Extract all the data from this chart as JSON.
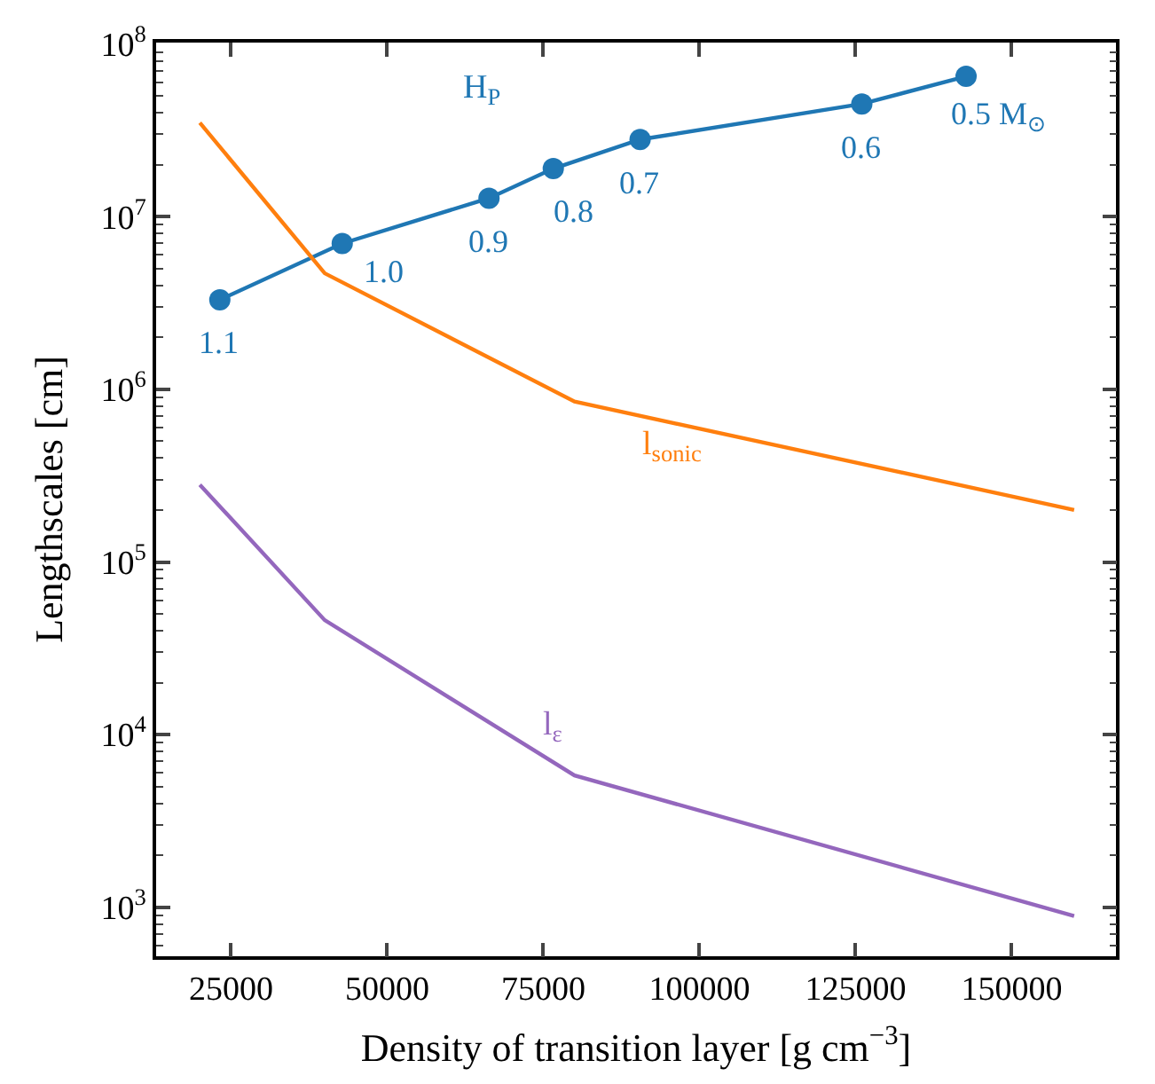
{
  "chart_data": {
    "type": "line",
    "xlabel": "Density of transition layer [g cm$^{−3}$]",
    "ylabel": "Lengthscales [cm]",
    "log": "y",
    "legend": false,
    "xlim": [
      13000,
      166700
    ],
    "xticks": [
      25000,
      50000,
      75000,
      100000,
      125000,
      150000
    ],
    "ylim": [
      520,
      102000000
    ],
    "yticks": [
      {
        "value": 1000,
        "label": "10$^{3}$"
      },
      {
        "value": 10000,
        "label": "10$^{4}$"
      },
      {
        "value": 100000,
        "label": "10$^{5}$"
      },
      {
        "value": 1000000,
        "label": "10$^{6}$"
      },
      {
        "value": 10000000,
        "label": "10$^{7}$"
      },
      {
        "value": 100000000,
        "label": "10$^{8}$"
      }
    ],
    "series": [
      {
        "name": "H$_{P}$",
        "color": "#1f77b4",
        "marker": "circle",
        "x": [
          23200,
          42800,
          66300,
          76600,
          90500,
          126000,
          142700
        ],
        "values": [
          3300000,
          7000000,
          12800000,
          19000000,
          28000000,
          45000000,
          65000000
        ]
      },
      {
        "name": "l$_{sonic}$",
        "color": "#ff7f0e",
        "marker": "none",
        "x": [
          20000,
          40000,
          80000,
          160000
        ],
        "values": [
          35000000,
          4700000,
          850000,
          200000
        ]
      },
      {
        "name": "l$_{ε}$",
        "color": "#9467bd",
        "marker": "none",
        "x": [
          20000,
          40000,
          80000,
          160000
        ],
        "values": [
          280000,
          46000,
          5800,
          890
        ]
      }
    ],
    "annotations": [
      {
        "text": "1.1",
        "x": 23200,
        "y": 3300000
      },
      {
        "text": "1.0",
        "x": 42800,
        "y": 7000000
      },
      {
        "text": "0.9",
        "x": 66300,
        "y": 12800000
      },
      {
        "text": "0.8",
        "x": 76600,
        "y": 19000000
      },
      {
        "text": "0.7",
        "x": 90500,
        "y": 28000000
      },
      {
        "text": "0.6",
        "x": 126000,
        "y": 45000000
      },
      {
        "text": "0.5 M$_{⊙}$",
        "x": 142700,
        "y": 65000000
      }
    ]
  }
}
